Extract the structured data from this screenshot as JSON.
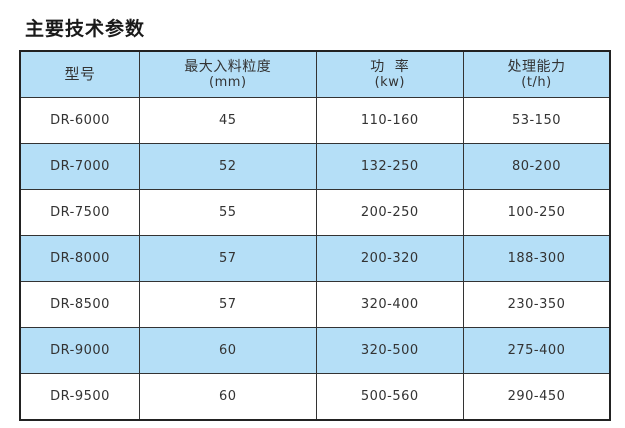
{
  "title": "主要技术参数",
  "table": {
    "headers": [
      {
        "label": "型号",
        "unit": ""
      },
      {
        "label": "最大入料粒度",
        "unit": "(mm)"
      },
      {
        "label": "功  率",
        "unit": "(kw)"
      },
      {
        "label": "处理能力",
        "unit": "(t/h)"
      }
    ],
    "rows": [
      [
        "DR-6000",
        "45",
        "110-160",
        "53-150"
      ],
      [
        "DR-7000",
        "52",
        "132-250",
        "80-200"
      ],
      [
        "DR-7500",
        "55",
        "200-250",
        "100-250"
      ],
      [
        "DR-8000",
        "57",
        "200-320",
        "188-300"
      ],
      [
        "DR-8500",
        "57",
        "320-400",
        "230-350"
      ],
      [
        "DR-9000",
        "60",
        "320-500",
        "275-400"
      ],
      [
        "DR-9500",
        "60",
        "500-560",
        "290-450"
      ]
    ]
  },
  "colors": {
    "header_bg": "#b5dff7",
    "alt_row_bg": "#b5dff7",
    "border": "#333333"
  }
}
